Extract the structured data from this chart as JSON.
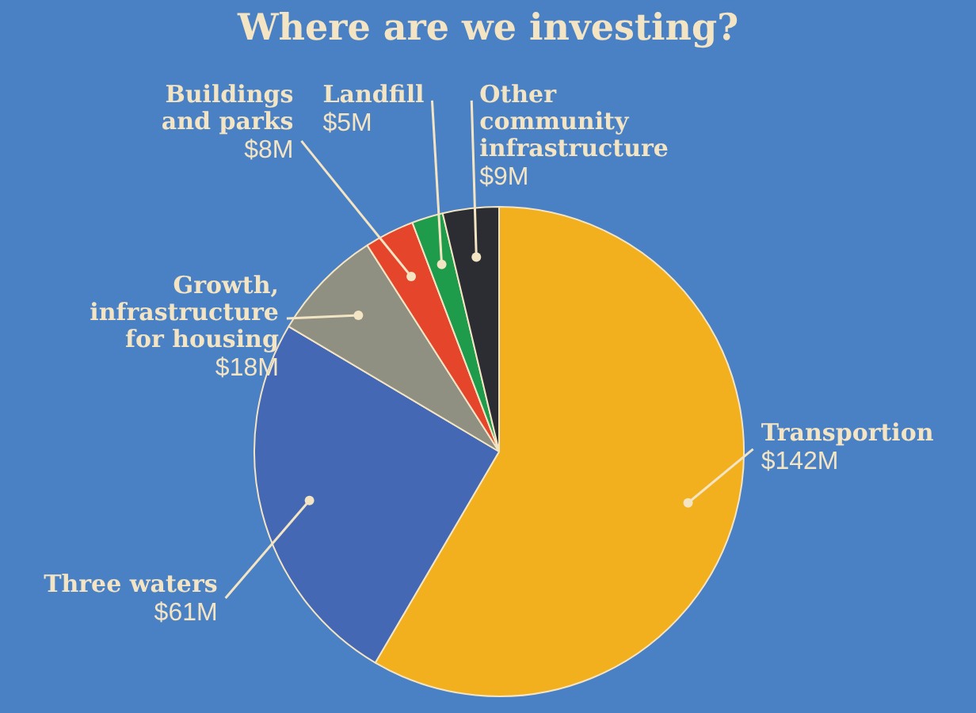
{
  "chart_data": {
    "type": "pie",
    "title": "Where are we investing?",
    "categories": [
      "Transportion",
      "Three waters",
      "Growth, infrastructure for housing",
      "Buildings and parks",
      "Landfill",
      "Other community infrastructure"
    ],
    "values": [
      142,
      61,
      18,
      8,
      5,
      9
    ],
    "value_labels": [
      "$142M",
      "$61M",
      "$18M",
      "$8M",
      "$5M",
      "$9M"
    ],
    "colors": [
      "#f2b01e",
      "#4468b3",
      "#8f8f82",
      "#e5452b",
      "#1e9c4b",
      "#2b2d33"
    ],
    "legend": false
  }
}
